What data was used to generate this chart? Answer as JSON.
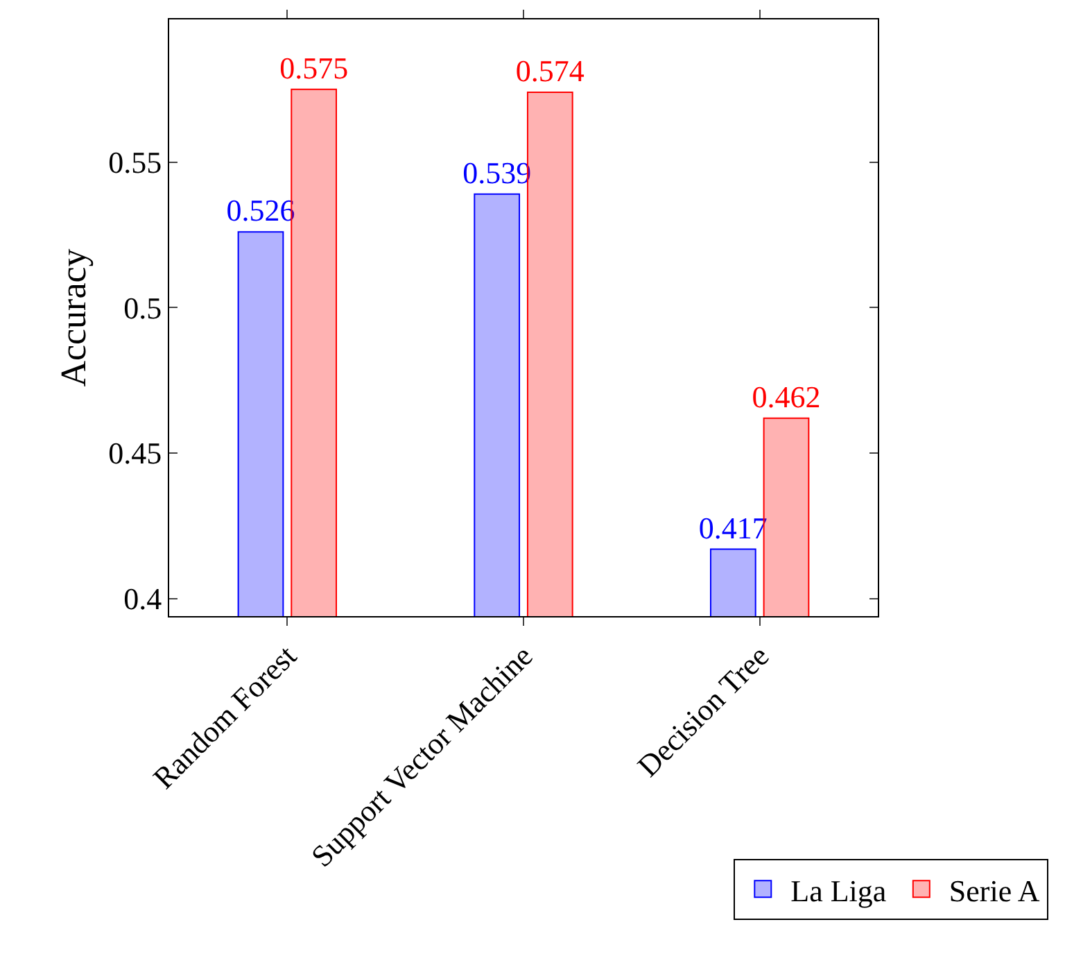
{
  "chart_data": {
    "type": "bar",
    "ylabel": "Accuracy",
    "categories": [
      "Random Forest",
      "Support Vector Machine",
      "Decision Tree"
    ],
    "series": [
      {
        "name": "La Liga",
        "color": "#0000ff",
        "values": [
          0.526,
          0.539,
          0.417
        ]
      },
      {
        "name": "Serie A",
        "color": "#ff0000",
        "values": [
          0.575,
          0.574,
          0.462
        ]
      }
    ],
    "ylim": [
      0.394,
      0.599
    ],
    "yticks": [
      0.4,
      0.45,
      0.5,
      0.55
    ],
    "data_labels": true,
    "legend": "bottom right"
  }
}
